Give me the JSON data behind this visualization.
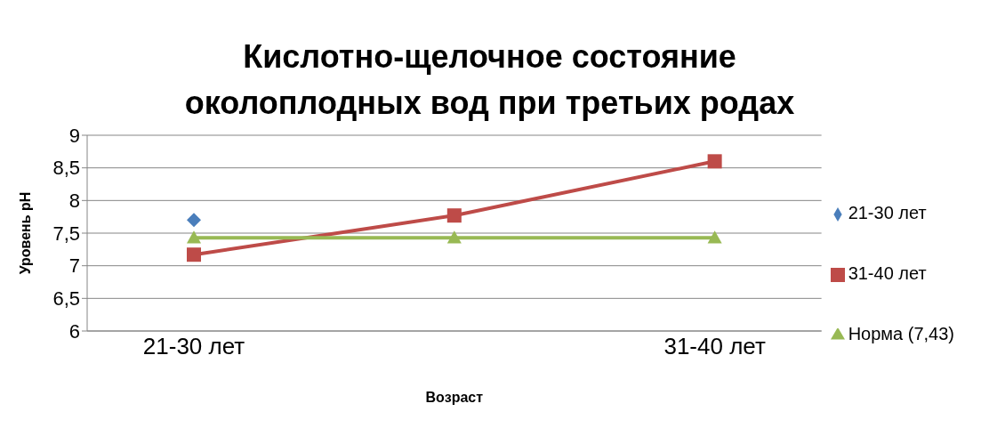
{
  "chart_data": {
    "type": "line",
    "title": "Кислотно-щелочное состояние околоплодных вод при третьих родах",
    "xlabel": "Возраст",
    "ylabel": "Уровень pH",
    "categories": [
      "21-30 лет",
      null,
      "31-40 лет"
    ],
    "series": [
      {
        "name": "21-30 лет",
        "color": "#4a7ebb",
        "marker": "diamond",
        "values": [
          7.7,
          null,
          null
        ]
      },
      {
        "name": "31-40 лет",
        "color": "#be4b48",
        "marker": "square",
        "values": [
          7.17,
          7.77,
          8.6
        ]
      },
      {
        "name": "Норма (7,43)",
        "color": "#98b954",
        "marker": "triangle",
        "values": [
          7.43,
          7.43,
          7.43
        ]
      }
    ],
    "ylim": [
      6,
      9
    ],
    "yticks": [
      6,
      {
        "value": 6.5,
        "label": "6,5"
      },
      7,
      {
        "value": 7.5,
        "label": "7,5"
      },
      8,
      {
        "value": 8.5,
        "label": "8,5"
      },
      9
    ],
    "grid": "y",
    "legend": "right"
  }
}
